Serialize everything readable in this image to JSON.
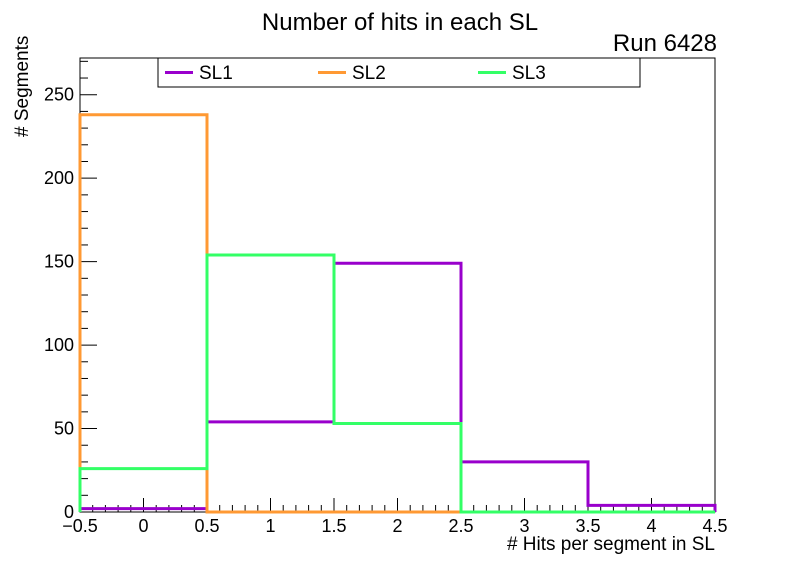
{
  "chart_data": {
    "type": "step-histogram",
    "title": "Number of hits in each SL",
    "run_label": "Run 6428",
    "xlabel": "# Hits per segment in SL",
    "ylabel": "# Segments",
    "bin_edges": [
      -0.5,
      0.5,
      1.5,
      2.5,
      3.5,
      4.5
    ],
    "series": [
      {
        "name": "SL1",
        "color": "#9900cc",
        "values": [
          2,
          54,
          149,
          30,
          4
        ]
      },
      {
        "name": "SL2",
        "color": "#ff9933",
        "values": [
          238,
          0,
          0,
          0,
          0
        ]
      },
      {
        "name": "SL3",
        "color": "#33ff66",
        "values": [
          26,
          154,
          53,
          0,
          0
        ]
      }
    ],
    "xlim": [
      -0.5,
      4.5
    ],
    "ylim": [
      0,
      272
    ],
    "x_ticks": {
      "values": [
        -0.5,
        0,
        0.5,
        1,
        1.5,
        2,
        2.5,
        3,
        3.5,
        4,
        4.5
      ],
      "labels": [
        "−0.5",
        "0",
        "0.5",
        "1",
        "1.5",
        "2",
        "2.5",
        "3",
        "3.5",
        "4",
        "4.5"
      ]
    },
    "y_ticks": {
      "values": [
        0,
        50,
        100,
        150,
        200,
        250
      ],
      "labels": [
        "0",
        "50",
        "100",
        "150",
        "200",
        "250"
      ]
    },
    "x_minor_step": 0.1,
    "y_minor_step": 10,
    "grid": false,
    "legend_position": "top-inside",
    "legend_entries": [
      "SL1",
      "SL2",
      "SL3"
    ],
    "line_width": 3,
    "frame_color": "#000000",
    "background_color": "#ffffff"
  }
}
